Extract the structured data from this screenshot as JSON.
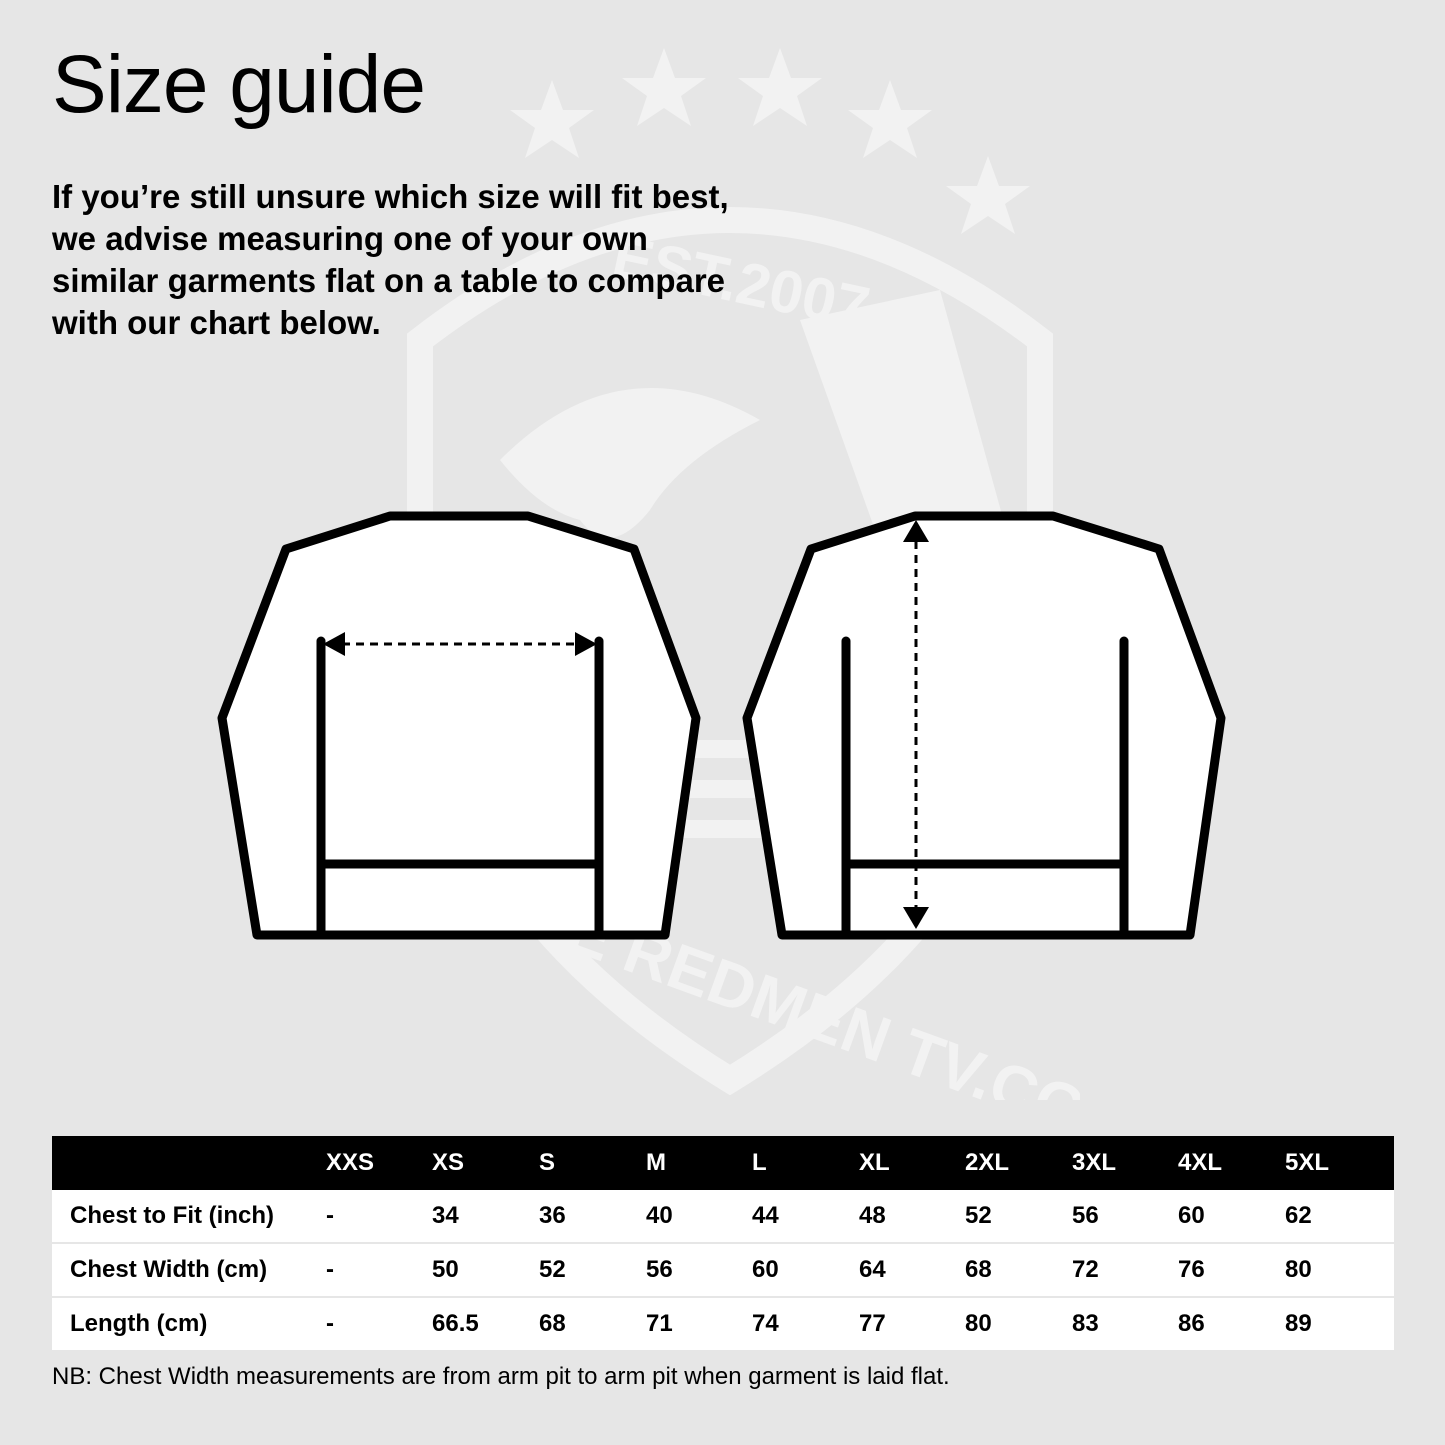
{
  "title": "Size guide",
  "intro": "If you’re still unsure which size will fit best, we advise measuring one of your own similar garments flat on a table to compare with our chart below.",
  "watermark": {
    "est_text": "EST.2007",
    "brand_text": "THE REDMEN TV.COM"
  },
  "table": {
    "sizes": [
      "XXS",
      "XS",
      "S",
      "M",
      "L",
      "XL",
      "2XL",
      "3XL",
      "4XL",
      "5XL"
    ],
    "rows": [
      {
        "label": "Chest to Fit (inch)",
        "values": [
          "-",
          "34",
          "36",
          "40",
          "44",
          "48",
          "52",
          "56",
          "60",
          "62"
        ]
      },
      {
        "label": "Chest Width (cm)",
        "values": [
          "-",
          "50",
          "52",
          "56",
          "60",
          "64",
          "68",
          "72",
          "76",
          "80"
        ]
      },
      {
        "label": "Length (cm)",
        "values": [
          "-",
          "66.5",
          "68",
          "71",
          "74",
          "77",
          "80",
          "83",
          "86",
          "89"
        ]
      }
    ]
  },
  "note": "NB: Chest Width measurements are from arm pit to arm pit when garment is laid flat.",
  "colors": {
    "background": "#e6e6e6",
    "watermark": "#f2f2f2",
    "header": "#000000",
    "row": "#ffffff"
  }
}
